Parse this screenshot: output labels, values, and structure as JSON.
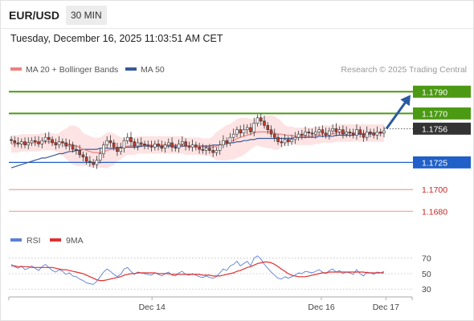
{
  "header": {
    "symbol": "EUR/USD",
    "timeframe": "30 MIN",
    "datetime": "Tuesday, December 16, 2025 11:03:51 AM CET"
  },
  "legend": {
    "ma20": "MA 20 + Bollinger Bands",
    "ma50": "MA 50",
    "credit": "Research © 2025 Trading Central",
    "rsi": "RSI",
    "ma9": "9MA"
  },
  "colors": {
    "ma20": "#f08080",
    "ma50": "#3a5a9a",
    "band": "#fde3e3",
    "candle_up": "#ffffff",
    "candle_down": "#c0392b",
    "target": "#4c9a14",
    "current": "#333333",
    "pivot": "#2060c8",
    "support": "#cc2222",
    "rsi": "#5b7fd6",
    "rsi_ma": "#e03030",
    "arrow": "#2c5aa0"
  },
  "chart_data": [
    {
      "type": "candlestick",
      "title": "EUR/USD 30 MIN",
      "ylim": [
        1.1664,
        1.1802
      ],
      "x_ticks": [
        "Dec 14",
        "Dec 16",
        "Dec 17"
      ],
      "x_tick_positions": [
        0.355,
        0.775,
        0.935
      ],
      "levels": [
        {
          "label": "1.1790",
          "value": 1.179,
          "role": "target"
        },
        {
          "label": "1.1770",
          "value": 1.177,
          "role": "target"
        },
        {
          "label": "1.1756",
          "value": 1.1756,
          "role": "current"
        },
        {
          "label": "1.1725",
          "value": 1.1725,
          "role": "pivot"
        },
        {
          "label": "1.1700",
          "value": 1.17,
          "role": "support"
        },
        {
          "label": "1.1680",
          "value": 1.168,
          "role": "support"
        }
      ],
      "close_series": [
        1.1745,
        1.1743,
        1.1742,
        1.1744,
        1.1741,
        1.1743,
        1.1745,
        1.1744,
        1.1742,
        1.1745,
        1.1748,
        1.1746,
        1.1743,
        1.1741,
        1.1744,
        1.1743,
        1.174,
        1.1741,
        1.1737,
        1.1736,
        1.1732,
        1.173,
        1.1726,
        1.1725,
        1.1723,
        1.1727,
        1.1733,
        1.1741,
        1.1745,
        1.1743,
        1.1739,
        1.1735,
        1.1738,
        1.1745,
        1.1748,
        1.1744,
        1.174,
        1.1743,
        1.1742,
        1.1741,
        1.174,
        1.1739,
        1.1742,
        1.174,
        1.1738,
        1.1741,
        1.1743,
        1.1739,
        1.1738,
        1.1742,
        1.1744,
        1.174,
        1.1739,
        1.1741,
        1.1739,
        1.1737,
        1.1736,
        1.1738,
        1.1736,
        1.1734,
        1.1736,
        1.1741,
        1.1745,
        1.1743,
        1.1748,
        1.1751,
        1.1755,
        1.1752,
        1.1755,
        1.1757,
        1.1753,
        1.1761,
        1.1766,
        1.1763,
        1.1759,
        1.1755,
        1.1751,
        1.1748,
        1.1744,
        1.1743,
        1.1746,
        1.1744,
        1.1746,
        1.1748,
        1.1751,
        1.175,
        1.1753,
        1.1752,
        1.1751,
        1.1753,
        1.1755,
        1.1752,
        1.175,
        1.1754,
        1.1756,
        1.1753,
        1.1755,
        1.1751,
        1.1753,
        1.1752,
        1.175,
        1.1755,
        1.1751,
        1.1748,
        1.1753,
        1.1752,
        1.175,
        1.1753,
        1.1752,
        1.1754
      ],
      "ma20_series": [
        1.1742,
        1.1742,
        1.1742,
        1.1743,
        1.1743,
        1.1743,
        1.1743,
        1.1743,
        1.1743,
        1.1744,
        1.1744,
        1.1744,
        1.1744,
        1.1743,
        1.1743,
        1.1743,
        1.1742,
        1.1742,
        1.1741,
        1.174,
        1.1739,
        1.1737,
        1.1736,
        1.1735,
        1.1734,
        1.1734,
        1.1734,
        1.1735,
        1.1736,
        1.1737,
        1.1737,
        1.1738,
        1.1738,
        1.1739,
        1.174,
        1.174,
        1.174,
        1.1741,
        1.1741,
        1.1741,
        1.1741,
        1.1741,
        1.1741,
        1.1741,
        1.1741,
        1.1741,
        1.1741,
        1.1741,
        1.1741,
        1.1741,
        1.1741,
        1.174,
        1.174,
        1.174,
        1.174,
        1.174,
        1.1739,
        1.1739,
        1.1739,
        1.1739,
        1.174,
        1.1741,
        1.1742,
        1.1743,
        1.1744,
        1.1745,
        1.1747,
        1.1748,
        1.1749,
        1.175,
        1.1751,
        1.1752,
        1.1753,
        1.1753,
        1.1753,
        1.1753,
        1.1753,
        1.1752,
        1.1751,
        1.1751,
        1.175,
        1.175,
        1.175,
        1.1749,
        1.1749,
        1.1749,
        1.1749,
        1.1749,
        1.1749,
        1.175,
        1.175,
        1.1751,
        1.1751,
        1.1751,
        1.1751,
        1.1752,
        1.1752,
        1.1752,
        1.1752,
        1.1752,
        1.1752,
        1.1752,
        1.1752,
        1.1752,
        1.1752,
        1.1752,
        1.1752,
        1.1752,
        1.1752,
        1.1752
      ],
      "ma50_series": [
        1.172,
        1.1721,
        1.1722,
        1.1723,
        1.1724,
        1.1725,
        1.1726,
        1.1727,
        1.1728,
        1.1729,
        1.1729,
        1.173,
        1.1731,
        1.1732,
        1.1733,
        1.1733,
        1.1734,
        1.1735,
        1.1735,
        1.1736,
        1.1736,
        1.1737,
        1.1737,
        1.1737,
        1.1737,
        1.1737,
        1.1738,
        1.1738,
        1.1738,
        1.1738,
        1.1738,
        1.1738,
        1.1739,
        1.1739,
        1.1739,
        1.1739,
        1.1739,
        1.1739,
        1.174,
        1.174,
        1.174,
        1.174,
        1.174,
        1.174,
        1.174,
        1.174,
        1.174,
        1.174,
        1.174,
        1.174,
        1.174,
        1.174,
        1.174,
        1.174,
        1.174,
        1.174,
        1.174,
        1.174,
        1.174,
        1.1741,
        1.1741,
        1.1741,
        1.1742,
        1.1742,
        1.1743,
        1.1743,
        1.1744,
        1.1744,
        1.1745,
        1.1745,
        1.1746,
        1.1746,
        1.1747,
        1.1747,
        1.1747,
        1.1747,
        1.1747,
        1.1747,
        1.1747,
        1.1747,
        1.1747,
        1.1747,
        1.1747,
        1.1748,
        1.1748,
        1.1748,
        1.1748,
        1.1748,
        1.1748,
        1.1748,
        1.1749,
        1.1749,
        1.1749,
        1.1749,
        1.1749,
        1.175,
        1.175,
        1.175,
        1.175,
        1.175,
        1.175,
        1.1751,
        1.1751,
        1.1751,
        1.1751,
        1.1751,
        1.1752,
        1.1752,
        1.1752,
        1.1752
      ],
      "forecast": {
        "from": 1.1756,
        "to": 1.179
      }
    },
    {
      "type": "line",
      "title": "RSI",
      "ylim": [
        24,
        78
      ],
      "y_ticks": [
        70,
        50,
        30
      ],
      "series": [
        {
          "name": "RSI",
          "values": [
            62,
            59,
            57,
            60,
            55,
            57,
            60,
            57,
            54,
            59,
            62,
            58,
            54,
            52,
            55,
            53,
            49,
            51,
            47,
            46,
            43,
            41,
            38,
            37,
            36,
            40,
            46,
            52,
            56,
            53,
            49,
            46,
            49,
            56,
            58,
            53,
            49,
            52,
            51,
            50,
            49,
            48,
            51,
            49,
            47,
            50,
            52,
            48,
            47,
            51,
            53,
            49,
            48,
            50,
            48,
            46,
            45,
            47,
            45,
            44,
            46,
            51,
            56,
            54,
            60,
            62,
            66,
            60,
            63,
            66,
            60,
            70,
            73,
            69,
            62,
            57,
            52,
            48,
            44,
            43,
            46,
            44,
            46,
            48,
            51,
            50,
            53,
            52,
            51,
            53,
            55,
            52,
            50,
            54,
            56,
            52,
            54,
            50,
            52,
            51,
            49,
            55,
            50,
            47,
            52,
            51,
            49,
            52,
            51,
            53
          ]
        },
        {
          "name": "9MA",
          "values": [
            60,
            60,
            59,
            59,
            59,
            59,
            58,
            58,
            58,
            58,
            58,
            58,
            58,
            57,
            56,
            55,
            55,
            54,
            53,
            52,
            51,
            50,
            48,
            46,
            44,
            42,
            41,
            41,
            42,
            43,
            44,
            45,
            46,
            48,
            49,
            50,
            50,
            51,
            51,
            51,
            51,
            51,
            51,
            50,
            50,
            50,
            50,
            49,
            49,
            49,
            49,
            49,
            49,
            49,
            49,
            49,
            48,
            48,
            48,
            47,
            47,
            47,
            48,
            49,
            50,
            51,
            53,
            54,
            56,
            58,
            59,
            61,
            63,
            64,
            65,
            65,
            64,
            62,
            59,
            56,
            53,
            50,
            48,
            47,
            46,
            46,
            46,
            47,
            48,
            49,
            50,
            51,
            51,
            52,
            52,
            52,
            52,
            52,
            52,
            52,
            52,
            52,
            52,
            52,
            51,
            51,
            51,
            51,
            51,
            51
          ]
        }
      ]
    }
  ]
}
